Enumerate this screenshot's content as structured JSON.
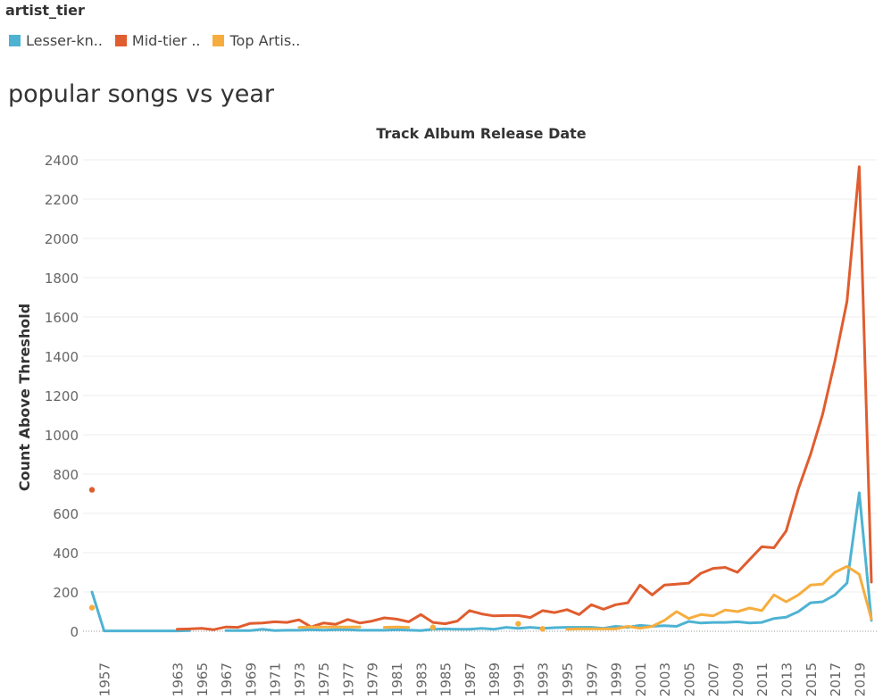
{
  "legend": {
    "title": "artist_tier",
    "items": [
      {
        "label": "Lesser-kn..",
        "color": "#4eb3d3"
      },
      {
        "label": "Mid-tier ..",
        "color": "#e05d2f"
      },
      {
        "label": "Top Artis..",
        "color": "#f7ad3e"
      }
    ]
  },
  "sheet_title": "popular songs vs year",
  "chart_data": {
    "type": "line",
    "title": "Track Album Release Date",
    "xlabel": "",
    "ylabel": "Count Above Threshold",
    "xlim": [
      1956,
      2020
    ],
    "ylim": [
      -100,
      2450
    ],
    "yticks": [
      0,
      200,
      400,
      600,
      800,
      1000,
      1200,
      1400,
      1600,
      1800,
      2000,
      2200,
      2400
    ],
    "xticks": [
      1957,
      1963,
      1965,
      1967,
      1969,
      1971,
      1973,
      1975,
      1977,
      1979,
      1981,
      1983,
      1985,
      1987,
      1989,
      1991,
      1993,
      1995,
      1997,
      1999,
      2001,
      2003,
      2005,
      2007,
      2009,
      2011,
      2013,
      2015,
      2017,
      2019
    ],
    "grid": "horizontal",
    "series": [
      {
        "name": "Lesser-kn..",
        "color": "#4eb3d3",
        "segments": [
          [
            [
              1956,
              200
            ],
            [
              1957,
              2
            ],
            [
              1963,
              2
            ],
            [
              1964,
              3
            ]
          ],
          [
            [
              1967,
              3
            ],
            [
              1968,
              3
            ],
            [
              1969,
              3
            ],
            [
              1970,
              10
            ],
            [
              1971,
              3
            ],
            [
              1972,
              5
            ],
            [
              1973,
              5
            ],
            [
              1974,
              8
            ],
            [
              1975,
              6
            ],
            [
              1976,
              8
            ],
            [
              1977,
              8
            ],
            [
              1978,
              5
            ],
            [
              1979,
              5
            ],
            [
              1980,
              5
            ],
            [
              1981,
              8
            ],
            [
              1982,
              6
            ],
            [
              1983,
              3
            ],
            [
              1984,
              10
            ],
            [
              1985,
              12
            ],
            [
              1986,
              10
            ],
            [
              1987,
              10
            ],
            [
              1988,
              15
            ],
            [
              1989,
              10
            ],
            [
              1990,
              20
            ],
            [
              1991,
              15
            ],
            [
              1992,
              20
            ],
            [
              1993,
              15
            ],
            [
              1994,
              18
            ],
            [
              1995,
              20
            ],
            [
              1996,
              20
            ],
            [
              1997,
              20
            ],
            [
              1998,
              15
            ],
            [
              1999,
              25
            ],
            [
              2000,
              20
            ],
            [
              2001,
              30
            ],
            [
              2002,
              25
            ],
            [
              2003,
              28
            ],
            [
              2004,
              25
            ],
            [
              2005,
              50
            ],
            [
              2006,
              42
            ],
            [
              2007,
              45
            ],
            [
              2008,
              45
            ],
            [
              2009,
              48
            ],
            [
              2010,
              42
            ],
            [
              2011,
              45
            ],
            [
              2012,
              65
            ],
            [
              2013,
              72
            ],
            [
              2014,
              100
            ],
            [
              2015,
              145
            ],
            [
              2016,
              150
            ],
            [
              2017,
              185
            ],
            [
              2018,
              245
            ],
            [
              2019,
              705
            ],
            [
              2020,
              55
            ]
          ]
        ],
        "points": []
      },
      {
        "name": "Mid-tier ..",
        "color": "#e05d2f",
        "segments": [
          [
            [
              1963,
              10
            ],
            [
              1964,
              12
            ],
            [
              1965,
              15
            ],
            [
              1966,
              8
            ],
            [
              1967,
              22
            ],
            [
              1968,
              20
            ],
            [
              1969,
              40
            ],
            [
              1970,
              42
            ],
            [
              1971,
              48
            ],
            [
              1972,
              45
            ],
            [
              1973,
              58
            ],
            [
              1974,
              22
            ],
            [
              1975,
              42
            ],
            [
              1976,
              35
            ],
            [
              1977,
              60
            ],
            [
              1978,
              42
            ],
            [
              1979,
              52
            ],
            [
              1980,
              68
            ],
            [
              1981,
              62
            ],
            [
              1982,
              48
            ],
            [
              1983,
              85
            ],
            [
              1984,
              45
            ],
            [
              1985,
              38
            ],
            [
              1986,
              52
            ],
            [
              1987,
              105
            ],
            [
              1988,
              88
            ],
            [
              1989,
              78
            ],
            [
              1990,
              80
            ],
            [
              1991,
              80
            ],
            [
              1992,
              70
            ],
            [
              1993,
              105
            ],
            [
              1994,
              95
            ],
            [
              1995,
              110
            ],
            [
              1996,
              85
            ],
            [
              1997,
              135
            ],
            [
              1998,
              112
            ],
            [
              1999,
              135
            ],
            [
              2000,
              145
            ],
            [
              2001,
              235
            ],
            [
              2002,
              185
            ],
            [
              2003,
              235
            ],
            [
              2004,
              240
            ],
            [
              2005,
              245
            ],
            [
              2006,
              295
            ],
            [
              2007,
              320
            ],
            [
              2008,
              325
            ],
            [
              2009,
              300
            ],
            [
              2010,
              365
            ],
            [
              2011,
              430
            ],
            [
              2012,
              425
            ],
            [
              2013,
              510
            ],
            [
              2014,
              725
            ],
            [
              2015,
              900
            ],
            [
              2016,
              1105
            ],
            [
              2017,
              1375
            ],
            [
              2018,
              1680
            ],
            [
              2019,
              2365
            ],
            [
              2020,
              250
            ]
          ]
        ],
        "points": [
          [
            1956,
            720
          ]
        ]
      },
      {
        "name": "Top Artis..",
        "color": "#f7ad3e",
        "segments": [
          [
            [
              1973,
              20
            ],
            [
              1974,
              22
            ],
            [
              1975,
              22
            ],
            [
              1976,
              22
            ],
            [
              1977,
              22
            ],
            [
              1978,
              22
            ]
          ],
          [
            [
              1980,
              20
            ],
            [
              1981,
              22
            ],
            [
              1982,
              20
            ]
          ],
          [
            [
              1995,
              10
            ],
            [
              1996,
              12
            ],
            [
              1997,
              12
            ],
            [
              1998,
              12
            ],
            [
              1999,
              12
            ],
            [
              2000,
              25
            ],
            [
              2001,
              15
            ],
            [
              2002,
              25
            ],
            [
              2003,
              55
            ],
            [
              2004,
              100
            ],
            [
              2005,
              65
            ],
            [
              2006,
              85
            ],
            [
              2007,
              78
            ],
            [
              2008,
              108
            ],
            [
              2009,
              100
            ],
            [
              2010,
              118
            ],
            [
              2011,
              105
            ],
            [
              2012,
              185
            ],
            [
              2013,
              150
            ],
            [
              2014,
              185
            ],
            [
              2015,
              235
            ],
            [
              2016,
              240
            ],
            [
              2017,
              300
            ],
            [
              2018,
              330
            ],
            [
              2019,
              290
            ],
            [
              2020,
              62
            ]
          ]
        ],
        "points": [
          [
            1956,
            120
          ],
          [
            1984,
            20
          ],
          [
            1991,
            38
          ],
          [
            1993,
            12
          ]
        ]
      }
    ]
  }
}
